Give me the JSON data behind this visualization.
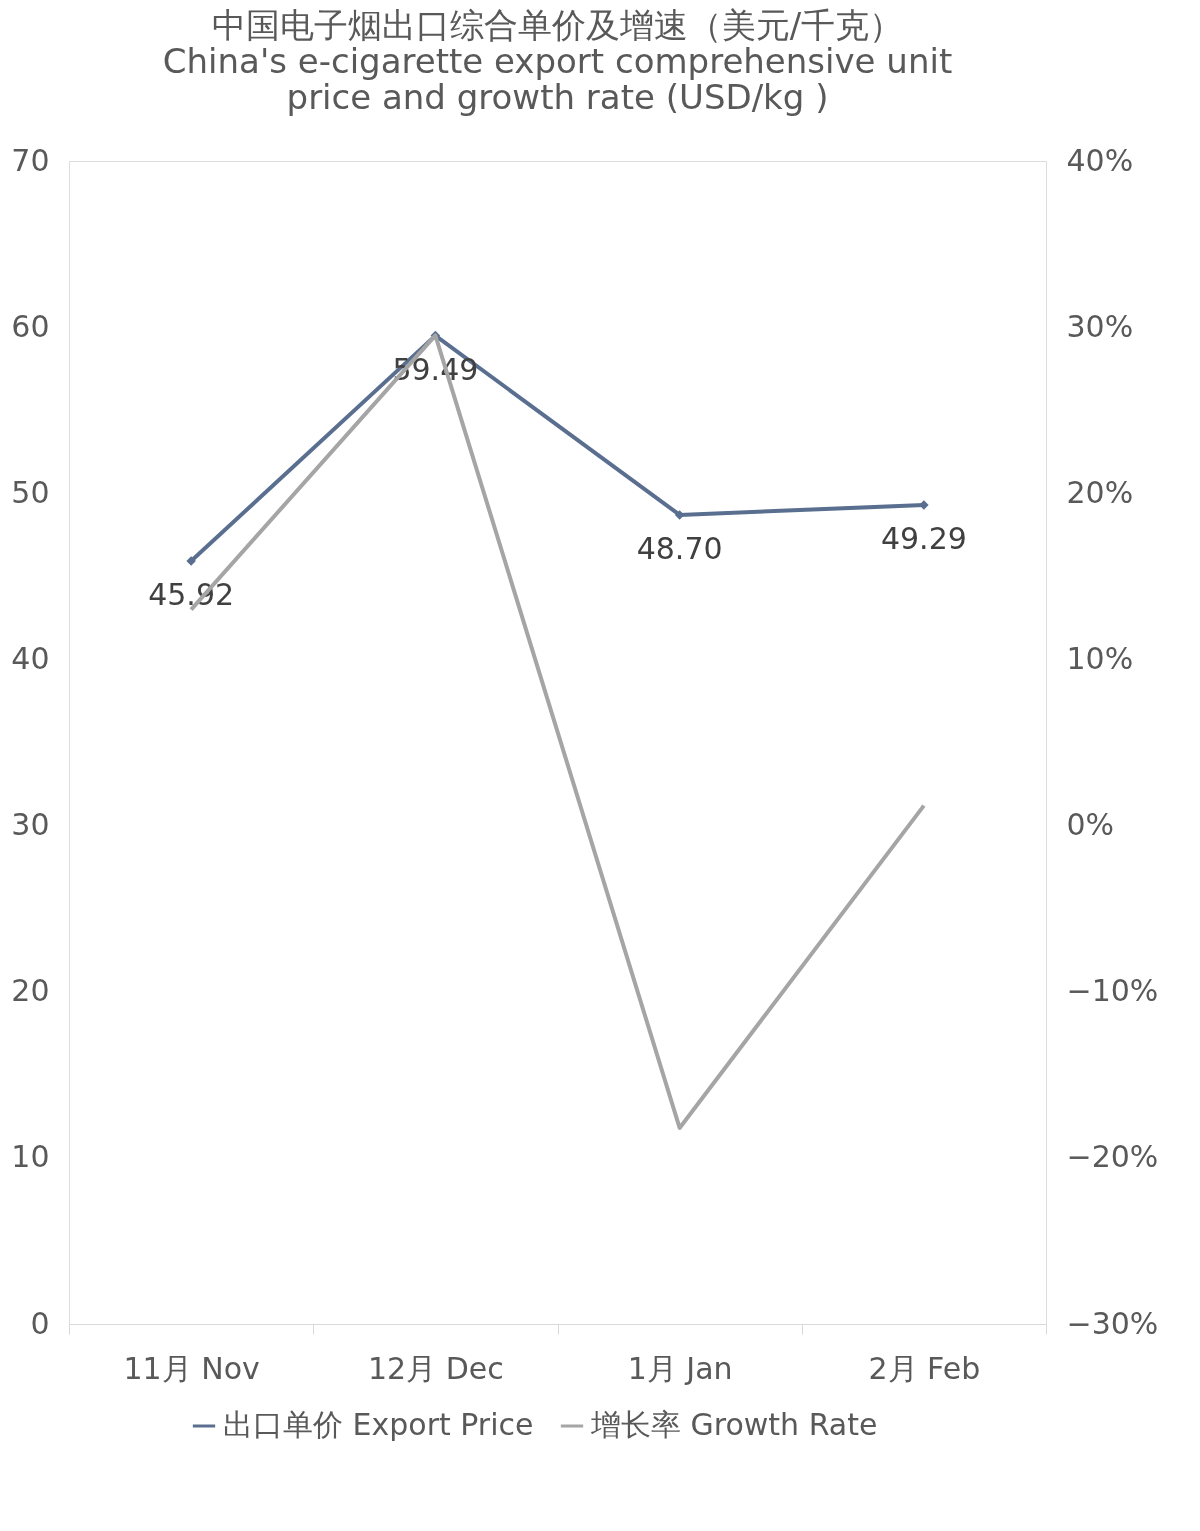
{
  "chart_data": {
    "type": "line",
    "title": "中国电子烟出口综合单价及增速（美元/千克）\nChina's e-cigarette export comprehensive unit\nprice and growth rate (USD/kg )",
    "categories": [
      "11月 Nov",
      "12月 Dec",
      "1月 Jan",
      "2月 Feb"
    ],
    "series": [
      {
        "name": "出口单价 Export Price",
        "color": "#5a6f8f",
        "marker": "diamond",
        "values": [
          45.92,
          59.49,
          48.7,
          49.29
        ],
        "value_labels": [
          "45.92",
          "59.49",
          "48.70",
          "49.29"
        ]
      },
      {
        "name": "增长率 Growth Rate",
        "color": "#a5a5a5",
        "marker": "none",
        "axis": "y2",
        "values": [
          13.0,
          29.5,
          -18.2,
          1.2
        ]
      }
    ],
    "ylim": [
      0,
      70
    ],
    "yticks": [
      0,
      10,
      20,
      30,
      40,
      50,
      60,
      70
    ],
    "y2lim": [
      -30,
      40
    ],
    "y2ticks": [
      {
        "value": 40,
        "label": "40%"
      },
      {
        "value": 30,
        "label": "30%"
      },
      {
        "value": 20,
        "label": "20%"
      },
      {
        "value": 10,
        "label": "10%"
      },
      {
        "value": 0,
        "label": "0%"
      },
      {
        "value": -10,
        "label": "−10%"
      },
      {
        "value": -20,
        "label": "−20%"
      },
      {
        "value": -30,
        "label": "−30%"
      }
    ],
    "legend": "bottom",
    "grid": false,
    "line_style": "solid"
  }
}
